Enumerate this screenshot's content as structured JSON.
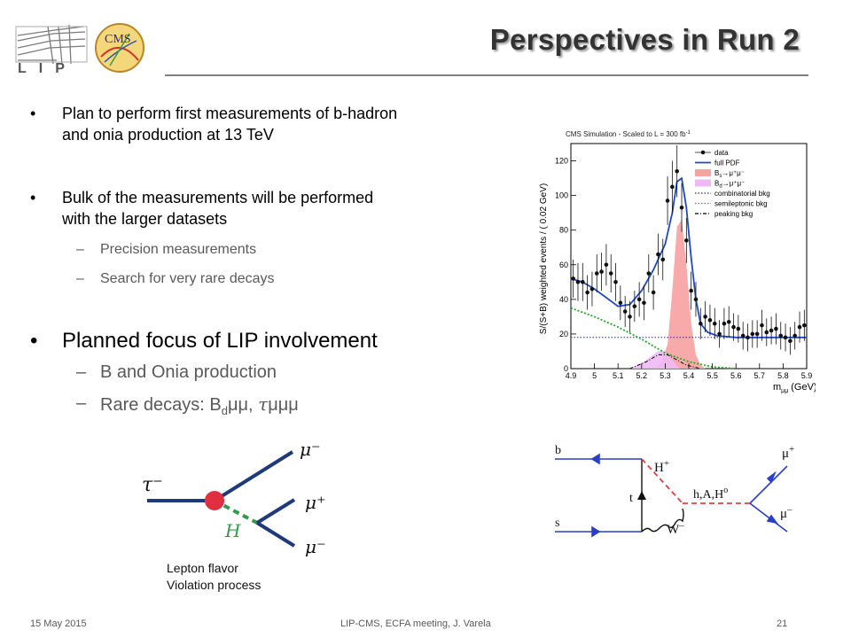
{
  "title": "Perspectives in Run 2",
  "logos": {
    "lip_text": "LIP",
    "cms_text": "CMS"
  },
  "bullets": [
    {
      "lines": [
        "Plan to perform first measurements of b-hadron",
        "and onia production at 13 TeV"
      ]
    },
    {
      "lines": [
        "Bulk of the measurements will be performed",
        "with the larger datasets"
      ],
      "subs": [
        "Precision measurements",
        "Search for very rare decays"
      ]
    },
    {
      "line": "Planned focus of LIP involvement",
      "subs": [
        "B and Onia production"
      ]
    }
  ],
  "rare_decays": {
    "prefix": "Rare decays: B",
    "subscript": "d",
    "part2": "μμ, ",
    "tau": "τ",
    "part3": "μμμ",
    "glyph": ""
  },
  "bullet_glyph": "•",
  "dash_glyph": "–",
  "chart_header": "CMS Simulation - Scaled to L = 300 fb",
  "chart_header_sup": "-1",
  "chart_data": {
    "type": "scatter",
    "xlabel": "m",
    "xlabel_sub": "μμ",
    "xlabel_unit": "(GeV)",
    "ylabel": "S/(S+B) weighted events / ( 0.02 GeV)",
    "xlim": [
      4.9,
      5.9
    ],
    "ylim": [
      0,
      130
    ],
    "x_ticks": [
      4.9,
      5,
      5.1,
      5.2,
      5.3,
      5.4,
      5.5,
      5.6,
      5.7,
      5.8,
      5.9
    ],
    "x_tick_labels": [
      "4.9",
      "5",
      "5.1",
      "5.2",
      "5.3",
      "5.4",
      "5.5",
      "5.6",
      "5.7",
      "5.8",
      "5.9"
    ],
    "y_ticks": [
      0,
      20,
      40,
      60,
      80,
      100,
      120
    ],
    "y_tick_labels": [
      "0",
      "20",
      "40",
      "60",
      "80",
      "100",
      "120"
    ],
    "legend_position": "top-right",
    "legend": [
      {
        "label": "data",
        "style": "marker"
      },
      {
        "label": "full PDF",
        "style": "solid",
        "color": "#1f49c4"
      },
      {
        "label": "B",
        "sub": "s",
        "tail": "→μ⁺μ⁻",
        "style": "fill",
        "color": "#f7a1a1"
      },
      {
        "label": "B",
        "sub": "d",
        "tail": "→μ⁺μ⁻",
        "style": "fill",
        "color": "#efb9f5"
      },
      {
        "label": "combinatorial bkg",
        "style": "dotted",
        "color": "#2a2a8a"
      },
      {
        "label": "semileptonic bkg",
        "style": "dotted",
        "color": "#22aa22"
      },
      {
        "label": "peaking bkg",
        "style": "dashdot",
        "color": "#000000"
      }
    ],
    "series": [
      {
        "name": "data",
        "x": [
          4.91,
          4.93,
          4.95,
          4.97,
          4.99,
          5.01,
          5.03,
          5.05,
          5.07,
          5.09,
          5.11,
          5.13,
          5.15,
          5.17,
          5.19,
          5.21,
          5.23,
          5.25,
          5.27,
          5.29,
          5.31,
          5.33,
          5.35,
          5.37,
          5.39,
          5.41,
          5.43,
          5.45,
          5.47,
          5.49,
          5.51,
          5.53,
          5.55,
          5.57,
          5.59,
          5.61,
          5.63,
          5.65,
          5.67,
          5.69,
          5.71,
          5.73,
          5.75,
          5.77,
          5.79,
          5.81,
          5.83,
          5.85,
          5.87,
          5.89
        ],
        "y": [
          52,
          50,
          50,
          44,
          46,
          55,
          56,
          60,
          55,
          50,
          38,
          33,
          30,
          36,
          40,
          38,
          55,
          44,
          66,
          63,
          97,
          105,
          114,
          93,
          74,
          45,
          40,
          26,
          30,
          28,
          26,
          20,
          26,
          27,
          24,
          23,
          19,
          18,
          20,
          20,
          25,
          21,
          22,
          23,
          19,
          18,
          16,
          19,
          24,
          25
        ],
        "err": [
          11,
          11,
          11,
          10,
          10,
          11,
          11,
          12,
          11,
          11,
          10,
          9,
          9,
          9,
          10,
          10,
          11,
          10,
          12,
          12,
          14,
          15,
          15,
          14,
          13,
          11,
          10,
          9,
          9,
          9,
          9,
          8,
          9,
          9,
          8,
          8,
          8,
          8,
          8,
          8,
          9,
          8,
          8,
          9,
          8,
          8,
          8,
          8,
          9,
          9
        ]
      },
      {
        "name": "full PDF",
        "x": [
          4.9,
          4.95,
          5.0,
          5.05,
          5.1,
          5.15,
          5.2,
          5.25,
          5.3,
          5.33,
          5.35,
          5.37,
          5.39,
          5.41,
          5.43,
          5.45,
          5.48,
          5.52,
          5.6,
          5.7,
          5.9
        ],
        "y": [
          52,
          50,
          46,
          41,
          36,
          37,
          45,
          57,
          72,
          90,
          108,
          110,
          93,
          64,
          40,
          26,
          21,
          19,
          18,
          18,
          18
        ]
      },
      {
        "name": "Bs→μ+μ-",
        "x": [
          5.25,
          5.28,
          5.31,
          5.33,
          5.35,
          5.37,
          5.39,
          5.41,
          5.43,
          5.45,
          5.47
        ],
        "y": [
          0,
          3,
          14,
          45,
          82,
          86,
          60,
          26,
          8,
          2,
          0
        ]
      },
      {
        "name": "Bd→μ+μ-",
        "x": [
          5.15,
          5.2,
          5.24,
          5.27,
          5.3,
          5.33,
          5.36
        ],
        "y": [
          0,
          3,
          7,
          10,
          10,
          5,
          0
        ]
      },
      {
        "name": "combinatorial bkg",
        "x": [
          4.9,
          5.9
        ],
        "y": [
          18,
          18
        ]
      },
      {
        "name": "semileptonic bkg",
        "x": [
          4.9,
          5.0,
          5.1,
          5.2,
          5.3,
          5.4,
          5.5,
          5.6
        ],
        "y": [
          35,
          30,
          24,
          17,
          9,
          4,
          1,
          0
        ]
      },
      {
        "name": "peaking bkg",
        "x": [
          5.15,
          5.22,
          5.27,
          5.31,
          5.35,
          5.39,
          5.45
        ],
        "y": [
          0,
          4,
          8,
          8,
          5,
          2,
          0
        ]
      }
    ]
  },
  "lfv_diagram": {
    "labels": {
      "tau": "τ⁻",
      "mu_top": "μ⁻",
      "mu_mid": "μ⁺",
      "mu_bot": "μ⁻",
      "higgs": "H"
    },
    "caption_lines": [
      "Lepton flavor",
      "Violation process"
    ]
  },
  "bsmumu_diagram": {
    "labels": {
      "b": "b",
      "s": "s",
      "t": "t",
      "hplus": "H",
      "hplus_sup": "+",
      "wminus": "W",
      "wminus_sup": "–",
      "neutral": "h,A,H",
      "neutral_sup": "o",
      "mu_plus": "μ",
      "mu_plus_sup": "+",
      "mu_minus": "μ",
      "mu_minus_sup": "–"
    }
  },
  "footer": {
    "date": "15 May 2015",
    "center": "LIP-CMS,  ECFA meeting,  J. Varela",
    "page": "21"
  }
}
